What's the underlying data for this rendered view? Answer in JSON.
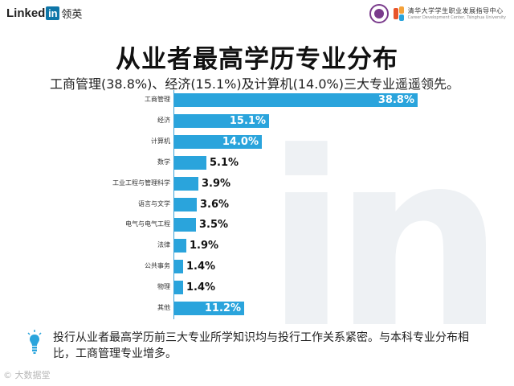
{
  "header": {
    "logo_word": "Linked",
    "logo_in": "in",
    "logo_cn": "领英",
    "org_cn": "清华大学学生职业发展指导中心",
    "org_en": "Career Development Center, Tsinghua University"
  },
  "title": "从业者最高学历专业分布",
  "subtitle": "工商管理(38.8%)、经济(15.1%)及计算机(14.0%)三大专业遥遥领先。",
  "chart_data": {
    "type": "bar",
    "orientation": "horizontal",
    "categories": [
      "工商管理",
      "经济",
      "计算机",
      "数学",
      "工业工程与管理科学",
      "语言与文学",
      "电气与电气工程",
      "法律",
      "公共事务",
      "物理",
      "其他"
    ],
    "values": [
      38.8,
      15.1,
      14.0,
      5.1,
      3.9,
      3.6,
      3.5,
      1.9,
      1.4,
      1.4,
      11.2
    ],
    "labels": [
      "38.8%",
      "15.1%",
      "14.0%",
      "5.1%",
      "3.9%",
      "3.6%",
      "3.5%",
      "1.9%",
      "1.4%",
      "1.4%",
      "11.2%"
    ],
    "unit": "%",
    "xlim": [
      0,
      38.8
    ],
    "grid": false,
    "color": "#2aa4dc"
  },
  "note": "投行从业者最高学历前三大专业所学知识均与投行工作关系紧密。与本科专业分布相比，工商管理专业增多。",
  "stamp": "© 大数据堂",
  "watermark": "in"
}
